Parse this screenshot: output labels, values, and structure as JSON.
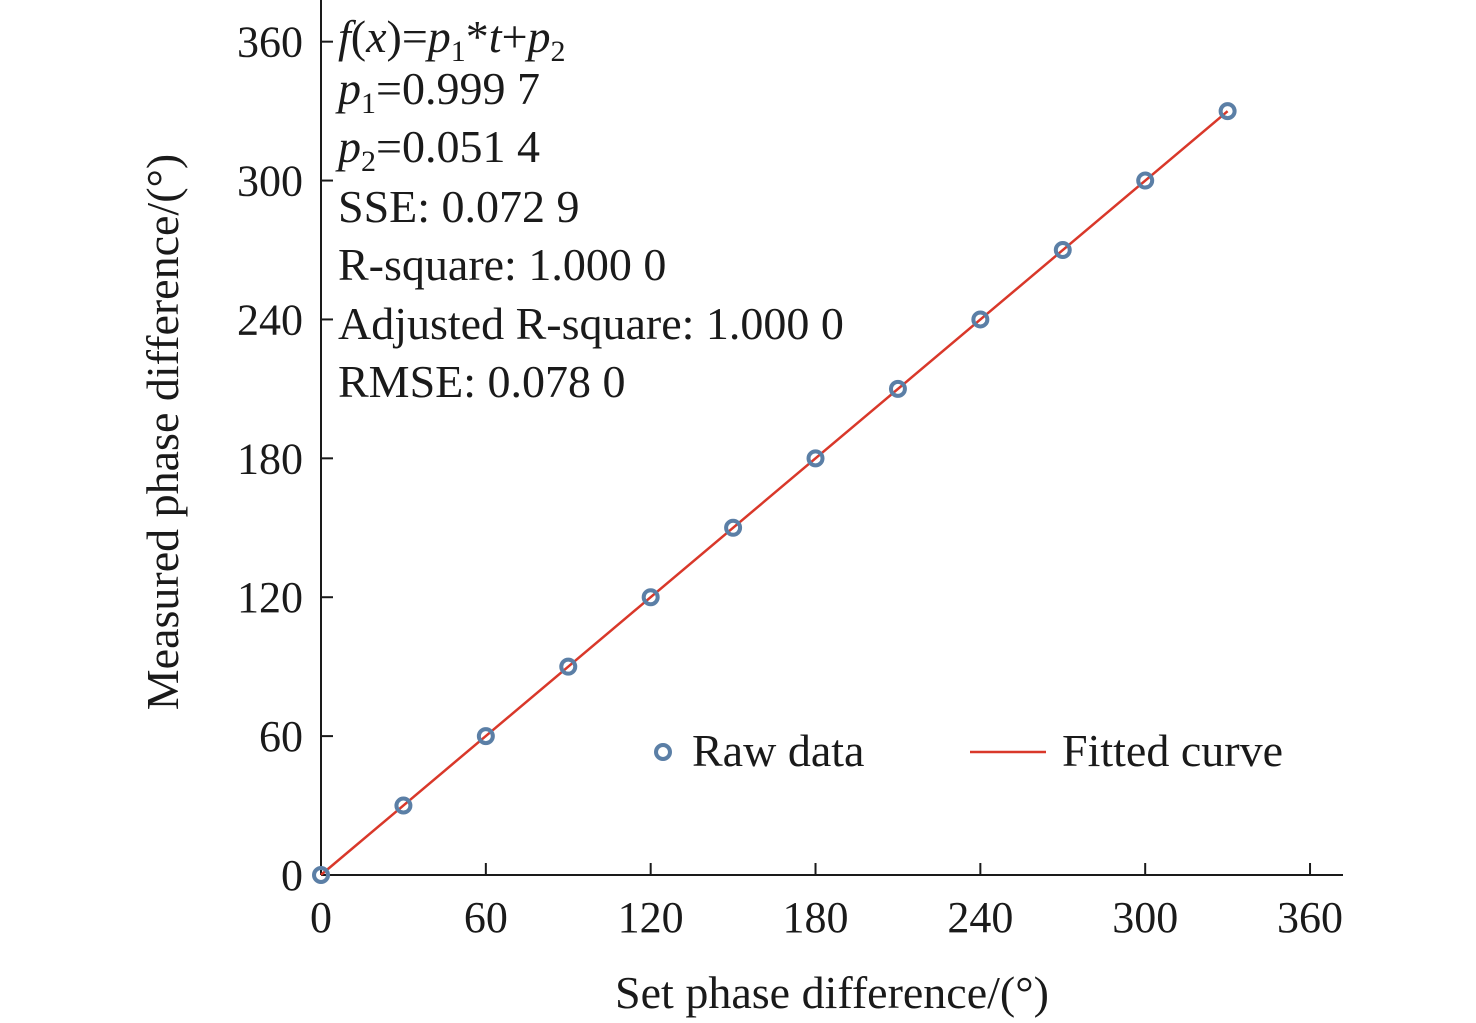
{
  "chart_data": {
    "type": "scatter",
    "xlabel": "Set phase difference/(°)",
    "ylabel": "Measured phase difference/(°)",
    "xlim": [
      0,
      372
    ],
    "ylim": [
      0,
      378
    ],
    "xticks": [
      0,
      60,
      120,
      180,
      240,
      300,
      360
    ],
    "yticks": [
      0,
      60,
      120,
      180,
      240,
      300,
      360
    ],
    "grid": false,
    "legend_placement": "bottom-right",
    "series": [
      {
        "name": "Raw data",
        "kind": "scatter",
        "color": "#5b7fa6",
        "x": [
          0,
          30,
          60,
          90,
          120,
          150,
          180,
          210,
          240,
          270,
          300,
          330
        ],
        "y": [
          0,
          30,
          60,
          90,
          120,
          150,
          180,
          210,
          240,
          270,
          300,
          330
        ]
      },
      {
        "name": "Fitted curve",
        "kind": "line",
        "color": "#d9382a",
        "x": [
          0,
          330
        ],
        "y": [
          0.0514,
          329.953
        ]
      }
    ],
    "annotation": {
      "equation": {
        "f": "f",
        "open": "(",
        "xvar": "x",
        "close": ")=",
        "p": "p",
        "sub1": "1",
        "times": "*",
        "t": "t",
        "plus": "+",
        "sub2": "2"
      },
      "p1_sub": "1",
      "p1_value": "=0.999 7",
      "p2_sub": "2",
      "p2_value": "=0.051 4",
      "lines": [
        "SSE: 0.072 9",
        "R-square: 1.000 0",
        "Adjusted R-square: 1.000 0",
        "RMSE: 0.078 0"
      ]
    }
  }
}
